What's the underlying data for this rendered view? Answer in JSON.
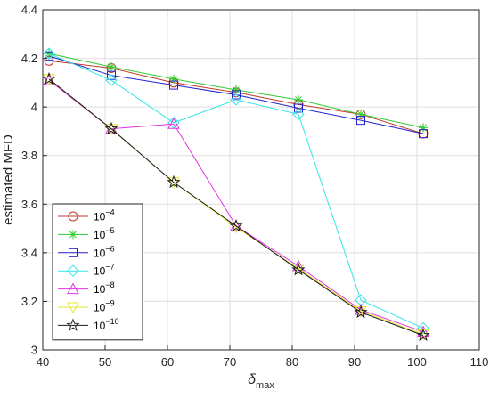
{
  "chart_data": {
    "type": "line",
    "xlabel": "δ",
    "xlabel_sub": "max",
    "ylabel": "estimated MFD",
    "xlim": [
      40,
      110
    ],
    "ylim": [
      3,
      4.4
    ],
    "xticks": [
      40,
      50,
      60,
      70,
      80,
      90,
      100,
      110
    ],
    "yticks": [
      3,
      3.2,
      3.4,
      3.6,
      3.8,
      4,
      4.2,
      4.4
    ],
    "grid": true,
    "legend_position": "bottom-left",
    "x": [
      41,
      51,
      61,
      71,
      81,
      91,
      101
    ],
    "series": [
      {
        "name": "10",
        "exponent": "−4",
        "marker": "circle",
        "color": "#c0392b",
        "values": [
          4.19,
          4.16,
          4.1,
          4.06,
          4.01,
          3.97,
          3.89
        ]
      },
      {
        "name": "10",
        "exponent": "−5",
        "marker": "asterisk",
        "color": "#33cc33",
        "values": [
          4.22,
          4.165,
          4.115,
          4.07,
          4.03,
          3.97,
          3.915
        ]
      },
      {
        "name": "10",
        "exponent": "−6",
        "marker": "square",
        "color": "#2222cc",
        "values": [
          4.21,
          4.13,
          4.09,
          4.05,
          3.995,
          3.945,
          3.89
        ]
      },
      {
        "name": "10",
        "exponent": "−7",
        "marker": "diamond",
        "color": "#33e6e6",
        "values": [
          4.22,
          4.11,
          3.935,
          4.03,
          3.97,
          3.205,
          3.09
        ]
      },
      {
        "name": "10",
        "exponent": "−8",
        "marker": "triangle-up",
        "color": "#e033e0",
        "values": [
          4.11,
          3.91,
          3.93,
          3.51,
          3.345,
          3.165,
          3.075
        ]
      },
      {
        "name": "10",
        "exponent": "−9",
        "marker": "triangle-down",
        "color": "#e6e633",
        "values": [
          4.115,
          3.91,
          3.69,
          3.505,
          3.335,
          3.16,
          3.065
        ]
      },
      {
        "name": "10",
        "exponent": "−10",
        "marker": "star",
        "color": "#1a1a1a",
        "values": [
          4.115,
          3.91,
          3.69,
          3.51,
          3.33,
          3.155,
          3.06
        ]
      }
    ]
  }
}
